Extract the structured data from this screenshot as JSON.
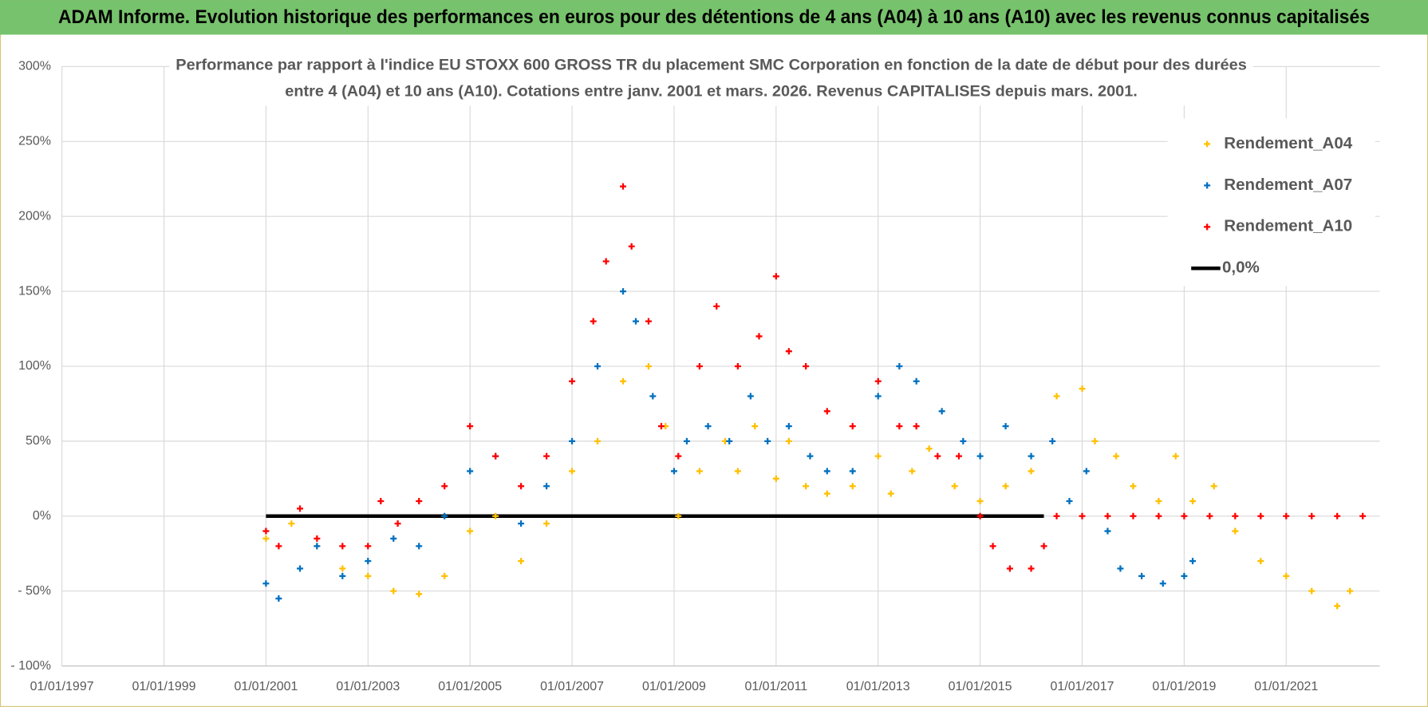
{
  "chart_data": {
    "type": "scatter",
    "title": "ADAM Informe. Evolution historique des performances en euros pour des détentions de 4 ans (A04) à 10 ans (A10) avec les revenus connus capitalisés",
    "subtitle": [
      "Performance par rapport à l'indice EU STOXX 600 GROSS TR  du placement SMC Corporation en fonction de la date de début pour des durées",
      "entre 4 (A04) et 10 ans (A10).  Cotations entre janv. 2001 et mars. 2026.  Revenus CAPITALISES depuis mars. 2001."
    ],
    "xlim": [
      "01/01/1997",
      "01/11/2022"
    ],
    "xticks": [
      "01/01/1997",
      "01/01/1999",
      "01/01/2001",
      "01/01/2003",
      "01/01/2005",
      "01/01/2007",
      "01/01/2009",
      "01/01/2011",
      "01/01/2013",
      "01/01/2015",
      "01/01/2017",
      "01/01/2019",
      "01/01/2021"
    ],
    "ylim": [
      -100,
      300
    ],
    "yticks": [
      {
        "value": -100,
        "label": "- 100%"
      },
      {
        "value": -50,
        "label": "- 50%"
      },
      {
        "value": 0,
        "label": "0%"
      },
      {
        "value": 50,
        "label": "50%"
      },
      {
        "value": 100,
        "label": "100%"
      },
      {
        "value": 150,
        "label": "150%"
      },
      {
        "value": 200,
        "label": "200%"
      },
      {
        "value": 250,
        "label": "250%"
      },
      {
        "value": 300,
        "label": "300%"
      }
    ],
    "grid": true,
    "legend": "upper right",
    "series": [
      {
        "name": "Rendement_A04",
        "color": "#ffc000",
        "type": "scatter",
        "x": [
          "01/01/2001",
          "01/07/2001",
          "01/01/2002",
          "01/07/2002",
          "01/01/2003",
          "01/07/2003",
          "01/01/2004",
          "01/07/2004",
          "01/01/2005",
          "01/07/2005",
          "01/01/2006",
          "01/07/2006",
          "01/01/2007",
          "01/07/2007",
          "01/01/2008",
          "01/07/2008",
          "01/11/2008",
          "01/02/2009",
          "01/07/2009",
          "01/01/2010",
          "01/04/2010",
          "01/08/2010",
          "01/01/2011",
          "01/04/2011",
          "01/08/2011",
          "01/01/2012",
          "01/07/2012",
          "01/01/2013",
          "01/04/2013",
          "01/09/2013",
          "01/01/2014",
          "01/07/2014",
          "01/01/2015",
          "01/07/2015",
          "01/01/2016",
          "01/07/2016",
          "01/01/2017",
          "01/04/2017",
          "01/09/2017",
          "01/01/2018",
          "01/07/2018",
          "01/11/2018",
          "01/03/2019",
          "01/08/2019",
          "01/01/2020",
          "01/07/2020",
          "01/01/2021",
          "01/07/2021",
          "01/01/2022",
          "01/04/2022"
        ],
        "values": [
          -15,
          -5,
          -20,
          -35,
          -40,
          -50,
          -52,
          -40,
          -10,
          0,
          -30,
          -5,
          30,
          50,
          90,
          100,
          60,
          0,
          30,
          50,
          30,
          60,
          25,
          50,
          20,
          15,
          20,
          40,
          15,
          30,
          45,
          20,
          10,
          20,
          30,
          80,
          85,
          50,
          40,
          20,
          10,
          40,
          10,
          20,
          -10,
          -30,
          -40,
          -50,
          -60,
          -50
        ]
      },
      {
        "name": "Rendement_A07",
        "color": "#0070c0",
        "type": "scatter",
        "x": [
          "01/01/2001",
          "01/04/2001",
          "01/09/2001",
          "01/01/2002",
          "01/07/2002",
          "01/01/2003",
          "01/07/2003",
          "01/01/2004",
          "01/07/2004",
          "01/01/2005",
          "01/07/2005",
          "01/01/2006",
          "01/07/2006",
          "01/01/2007",
          "01/07/2007",
          "01/01/2008",
          "01/04/2008",
          "01/08/2008",
          "01/01/2009",
          "01/04/2009",
          "01/09/2009",
          "01/02/2010",
          "01/07/2010",
          "01/11/2010",
          "01/04/2011",
          "01/09/2011",
          "01/01/2012",
          "01/07/2012",
          "01/01/2013",
          "01/06/2013",
          "01/10/2013",
          "01/04/2014",
          "01/09/2014",
          "01/01/2015",
          "01/07/2015",
          "01/01/2016",
          "01/06/2016",
          "01/10/2016",
          "01/02/2017",
          "01/07/2017",
          "01/10/2017",
          "01/03/2018",
          "01/08/2018",
          "01/01/2019",
          "01/03/2019"
        ],
        "values": [
          -45,
          -55,
          -35,
          -20,
          -40,
          -30,
          -15,
          -20,
          0,
          30,
          40,
          -5,
          20,
          50,
          100,
          150,
          130,
          80,
          30,
          50,
          60,
          50,
          80,
          50,
          60,
          40,
          30,
          30,
          80,
          100,
          90,
          70,
          50,
          40,
          60,
          40,
          50,
          10,
          30,
          -10,
          -35,
          -40,
          -45,
          -40,
          -30
        ]
      },
      {
        "name": "Rendement_A10",
        "color": "#ff0000",
        "type": "scatter",
        "x": [
          "01/01/2001",
          "01/04/2001",
          "01/09/2001",
          "01/01/2002",
          "01/07/2002",
          "01/01/2003",
          "01/04/2003",
          "01/08/2003",
          "01/01/2004",
          "01/07/2004",
          "01/01/2005",
          "01/07/2005",
          "01/01/2006",
          "01/07/2006",
          "01/01/2007",
          "01/06/2007",
          "01/09/2007",
          "01/01/2008",
          "01/03/2008",
          "01/07/2008",
          "01/10/2008",
          "01/02/2009",
          "01/07/2009",
          "01/11/2009",
          "01/04/2010",
          "01/09/2010",
          "01/01/2011",
          "01/04/2011",
          "01/08/2011",
          "01/01/2012",
          "01/07/2012",
          "01/01/2013",
          "01/06/2013",
          "01/10/2013",
          "01/03/2014",
          "01/08/2014",
          "01/01/2015",
          "01/04/2015",
          "01/08/2015",
          "01/01/2016",
          "01/04/2016",
          "01/07/2016",
          "01/01/2017",
          "01/07/2017",
          "01/01/2018",
          "01/07/2018",
          "01/01/2019",
          "01/07/2019",
          "01/01/2020",
          "01/07/2020",
          "01/01/2021",
          "01/07/2021",
          "01/01/2022",
          "01/07/2022"
        ],
        "values": [
          -10,
          -20,
          5,
          -15,
          -20,
          -20,
          10,
          -5,
          10,
          20,
          60,
          40,
          20,
          40,
          90,
          130,
          170,
          220,
          180,
          130,
          60,
          40,
          100,
          140,
          100,
          120,
          160,
          110,
          100,
          70,
          60,
          90,
          60,
          60,
          40,
          40,
          0,
          -20,
          -35,
          -35,
          -20,
          0,
          0,
          0,
          0,
          0,
          0,
          0,
          0,
          0,
          0,
          0,
          0,
          0
        ]
      },
      {
        "name": "0,0%",
        "color": "#000000",
        "type": "line",
        "x": [
          "01/01/2001",
          "01/04/2016"
        ],
        "values": [
          0,
          0
        ]
      }
    ]
  }
}
